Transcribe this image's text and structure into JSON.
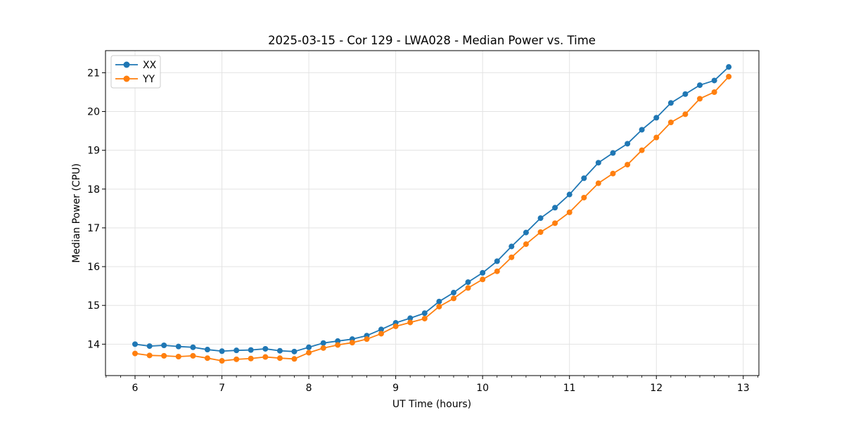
{
  "chart_data": {
    "type": "line",
    "title": "2025-03-15 - Cor 129 - LWA028 - Median Power vs. Time",
    "xlabel": "UT Time (hours)",
    "ylabel": "Median Power (CPU)",
    "xlim": [
      5.66,
      13.18
    ],
    "ylim": [
      13.19,
      21.57
    ],
    "x_ticks": [
      6,
      7,
      8,
      9,
      10,
      11,
      12,
      13
    ],
    "y_ticks": [
      14,
      15,
      16,
      17,
      18,
      19,
      20,
      21
    ],
    "x_minor_per_unit": 6,
    "grid": true,
    "grid_color": "#e3e3e3",
    "spine_color": "#000000",
    "legend_position": "upper-left",
    "marker": "circle",
    "x": [
      6.0,
      6.167,
      6.333,
      6.5,
      6.667,
      6.833,
      7.0,
      7.167,
      7.333,
      7.5,
      7.667,
      7.833,
      8.0,
      8.167,
      8.333,
      8.5,
      8.667,
      8.833,
      9.0,
      9.167,
      9.333,
      9.5,
      9.667,
      9.833,
      10.0,
      10.167,
      10.333,
      10.5,
      10.667,
      10.833,
      11.0,
      11.167,
      11.333,
      11.5,
      11.667,
      11.833,
      12.0,
      12.167,
      12.333,
      12.5,
      12.667,
      12.833
    ],
    "series": [
      {
        "name": "XX",
        "color": "#1f77b4",
        "values": [
          14.0,
          13.95,
          13.97,
          13.94,
          13.92,
          13.86,
          13.82,
          13.84,
          13.85,
          13.88,
          13.83,
          13.81,
          13.92,
          14.03,
          14.08,
          14.13,
          14.22,
          14.38,
          14.55,
          14.67,
          14.8,
          15.1,
          15.33,
          15.6,
          15.84,
          16.14,
          16.52,
          16.88,
          17.25,
          17.52,
          17.86,
          18.28,
          18.68,
          18.93,
          19.17,
          19.53,
          19.84,
          20.22,
          20.45,
          20.68,
          20.8,
          21.15
        ]
      },
      {
        "name": "YY",
        "color": "#ff7f0e",
        "values": [
          13.76,
          13.71,
          13.7,
          13.68,
          13.7,
          13.64,
          13.57,
          13.61,
          13.63,
          13.67,
          13.64,
          13.62,
          13.78,
          13.9,
          13.98,
          14.04,
          14.13,
          14.27,
          14.46,
          14.56,
          14.66,
          14.97,
          15.18,
          15.45,
          15.67,
          15.88,
          16.24,
          16.58,
          16.89,
          17.12,
          17.4,
          17.78,
          18.15,
          18.4,
          18.63,
          19.0,
          19.33,
          19.72,
          19.93,
          20.33,
          20.5,
          20.9
        ]
      }
    ]
  }
}
